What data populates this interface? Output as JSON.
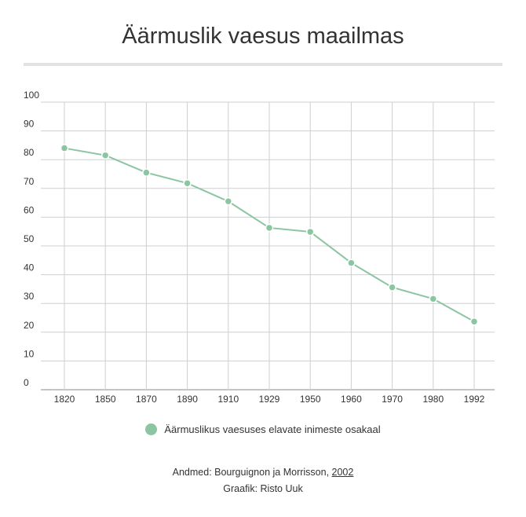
{
  "chart_data": {
    "type": "line",
    "title": "Äärmuslik vaesus maailmas",
    "categories": [
      "1820",
      "1850",
      "1870",
      "1890",
      "1910",
      "1929",
      "1950",
      "1960",
      "1970",
      "1980",
      "1992"
    ],
    "series": [
      {
        "name": "Äärmuslikus vaesuses elavate inimeste osakaal",
        "values": [
          84,
          81.5,
          75.5,
          71.8,
          65.5,
          56.3,
          54.9,
          44.1,
          35.6,
          31.6,
          23.7
        ],
        "color": "#8cc5a2"
      }
    ],
    "yticks": [
      0,
      10,
      20,
      30,
      40,
      50,
      60,
      70,
      80,
      90,
      100
    ],
    "ylim": [
      0,
      100
    ],
    "grid": true,
    "legend_position": "bottom"
  },
  "footer": {
    "source_prefix": "Andmed: Bourguignon ja Morrisson, ",
    "source_link": "2002",
    "credit": "Graafik: Risto Uuk"
  }
}
